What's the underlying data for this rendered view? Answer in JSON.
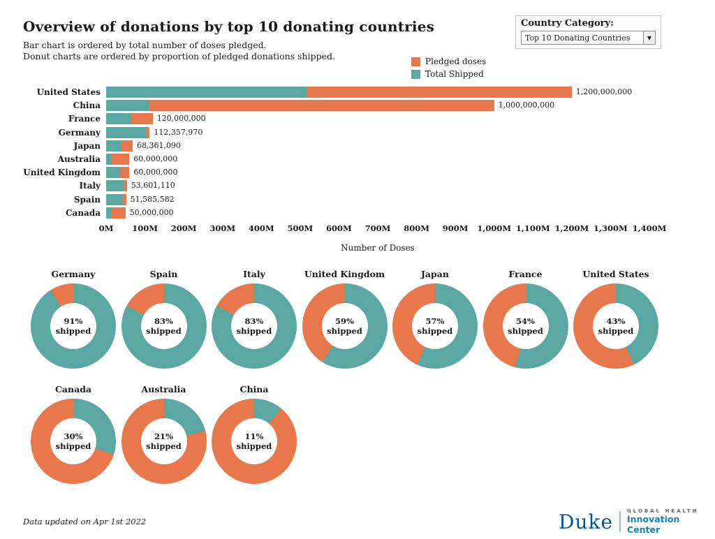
{
  "header": {
    "title": "Overview of donations by top 10 donating countries",
    "subtitle_line1": "Bar chart is ordered by total number of doses pledged.",
    "subtitle_line2": "Donut charts are ordered by proportion of pledged donations shipped.",
    "filter_label": "Country Category:",
    "filter_value": "Top 10 Donating Countries"
  },
  "legend": {
    "pledged_label": "Pledged doses",
    "shipped_label": "Total Shipped"
  },
  "colors": {
    "pledged": "#E8784B",
    "shipped": "#5BA7A1"
  },
  "chart_data": [
    {
      "type": "bar",
      "orientation": "horizontal",
      "xlabel": "Number of Doses",
      "xlim": [
        0,
        1400000000
      ],
      "x_tick_step": 100000000,
      "x_tick_labels": [
        "0M",
        "100M",
        "200M",
        "300M",
        "400M",
        "500M",
        "600M",
        "700M",
        "800M",
        "900M",
        "1,000M",
        "1,100M",
        "1,200M",
        "1,300M",
        "1,400M"
      ],
      "series_names": [
        "Total Shipped",
        "Pledged doses"
      ],
      "bars": [
        {
          "country": "United States",
          "total": 1200000000,
          "shipped_pct": 43,
          "label": "1,200,000,000"
        },
        {
          "country": "China",
          "total": 1000000000,
          "shipped_pct": 11,
          "label": "1,000,000,000"
        },
        {
          "country": "France",
          "total": 120000000,
          "shipped_pct": 54,
          "label": "120,000,000"
        },
        {
          "country": "Germany",
          "total": 112357970,
          "shipped_pct": 91,
          "label": "112,357,970"
        },
        {
          "country": "Japan",
          "total": 68361090,
          "shipped_pct": 57,
          "label": "68,361,090"
        },
        {
          "country": "Australia",
          "total": 60000000,
          "shipped_pct": 21,
          "label": "60,000,000"
        },
        {
          "country": "United Kingdom",
          "total": 60000000,
          "shipped_pct": 59,
          "label": "60,000,000"
        },
        {
          "country": "Italy",
          "total": 53601110,
          "shipped_pct": 83,
          "label": "53,601,110"
        },
        {
          "country": "Spain",
          "total": 51585582,
          "shipped_pct": 83,
          "label": "51,585,582"
        },
        {
          "country": "Canada",
          "total": 50000000,
          "shipped_pct": 30,
          "label": "50,000,000"
        }
      ]
    },
    {
      "type": "pie",
      "subtype": "donut-grid",
      "center_sub_label": "shipped",
      "donuts": [
        {
          "country": "Germany",
          "shipped_pct": 91,
          "pct_label": "91%"
        },
        {
          "country": "Spain",
          "shipped_pct": 83,
          "pct_label": "83%"
        },
        {
          "country": "Italy",
          "shipped_pct": 83,
          "pct_label": "83%"
        },
        {
          "country": "United Kingdom",
          "shipped_pct": 59,
          "pct_label": "59%"
        },
        {
          "country": "Japan",
          "shipped_pct": 57,
          "pct_label": "57%"
        },
        {
          "country": "France",
          "shipped_pct": 54,
          "pct_label": "54%"
        },
        {
          "country": "United States",
          "shipped_pct": 43,
          "pct_label": "43%"
        },
        {
          "country": "Canada",
          "shipped_pct": 30,
          "pct_label": "30%"
        },
        {
          "country": "Australia",
          "shipped_pct": 21,
          "pct_label": "21%"
        },
        {
          "country": "China",
          "shipped_pct": 11,
          "pct_label": "11%"
        }
      ]
    }
  ],
  "footer": {
    "updated": "Data updated on Apr 1st 2022"
  },
  "logo": {
    "duke": "Duke",
    "line1": "GLOBAL HEALTH",
    "line2": "Innovation Center"
  }
}
